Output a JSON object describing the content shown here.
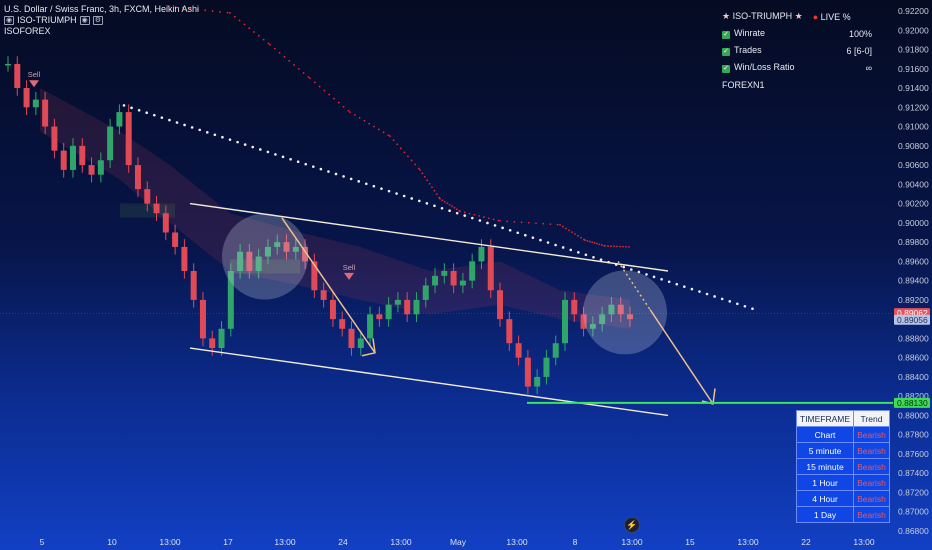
{
  "header": {
    "symbol_line": "U.S. Dollar / Swiss Franc, 3h, FXCM, Heikin Ashi",
    "indicator_1": "ISO-TRIUMPH",
    "indicator_2": "ISOFOREX",
    "icon_eye": "eye-icon"
  },
  "stats_panel": {
    "title": "ISO-TRIUMPH",
    "live": "LIVE %",
    "rows": [
      {
        "label": "Winrate",
        "value": "100%"
      },
      {
        "label": "Trades",
        "value": "6 [6-0]"
      },
      {
        "label": "Win/Loss Ratio",
        "value": "∞"
      }
    ],
    "footer": "FOREXN1"
  },
  "timeframe_table": {
    "headers": [
      "TIMEFRAME",
      "Trend"
    ],
    "rows": [
      {
        "tf": "Chart",
        "trend": "Bearish"
      },
      {
        "tf": "5 minute",
        "trend": "Bearish"
      },
      {
        "tf": "15 minute",
        "trend": "Bearish"
      },
      {
        "tf": "1 Hour",
        "trend": "Bearish"
      },
      {
        "tf": "4 Hour",
        "trend": "Bearish"
      },
      {
        "tf": "1 Day",
        "trend": "Bearish"
      }
    ]
  },
  "chart_data": {
    "type": "candlestick",
    "symbol": "USDCHF",
    "timeframe": "3h",
    "ylim": [
      0.866,
      0.9225
    ],
    "y_ticks": [
      "0.92200",
      "0.92000",
      "0.91800",
      "0.91600",
      "0.91400",
      "0.91200",
      "0.91000",
      "0.90800",
      "0.90600",
      "0.90400",
      "0.90200",
      "0.90000",
      "0.89800",
      "0.89600",
      "0.89400",
      "0.89200",
      "0.89000",
      "0.88800",
      "0.88600",
      "0.88400",
      "0.88200",
      "0.88000",
      "0.87800",
      "0.87600",
      "0.87400",
      "0.87200",
      "0.87000",
      "0.86800"
    ],
    "x_ticks": [
      "5",
      "10",
      "13:00",
      "17",
      "13:00",
      "24",
      "13:00",
      "May",
      "13:00",
      "8",
      "13:00",
      "15",
      "13:00",
      "22",
      "13:00"
    ],
    "price_labels": {
      "current": "0.89062",
      "bid": "0.89056",
      "target": "0.88130"
    },
    "price_label_values": {
      "current": 0.89062,
      "bid": 0.89056,
      "target": 0.8813
    },
    "close_path": [
      0.9165,
      0.914,
      0.912,
      0.9128,
      0.91,
      0.9075,
      0.9055,
      0.908,
      0.906,
      0.905,
      0.9065,
      0.91,
      0.9115,
      0.906,
      0.9035,
      0.902,
      0.901,
      0.899,
      0.8975,
      0.895,
      0.892,
      0.888,
      0.887,
      0.889,
      0.895,
      0.897,
      0.895,
      0.8965,
      0.8975,
      0.898,
      0.897,
      0.8975,
      0.896,
      0.893,
      0.892,
      0.89,
      0.889,
      0.887,
      0.888,
      0.8905,
      0.89,
      0.8915,
      0.892,
      0.8905,
      0.892,
      0.8935,
      0.8945,
      0.895,
      0.8935,
      0.894,
      0.896,
      0.8975,
      0.893,
      0.89,
      0.8875,
      0.886,
      0.883,
      0.884,
      0.886,
      0.8875,
      0.892,
      0.8905,
      0.889,
      0.8895,
      0.8905,
      0.8915,
      0.8905,
      0.89
    ],
    "sell_signals": [
      [
        0.9145,
        "Sell"
      ],
      [
        0.8945,
        "Sell"
      ]
    ]
  }
}
